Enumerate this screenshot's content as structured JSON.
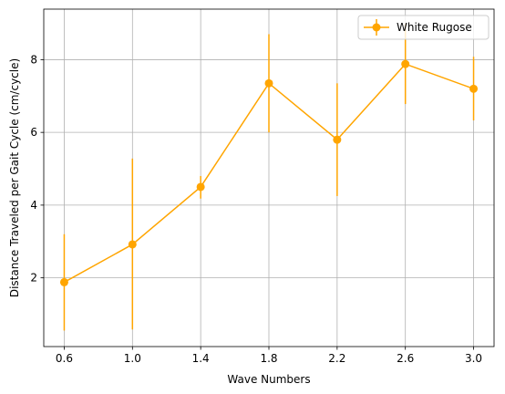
{
  "chart_data": {
    "type": "line",
    "title": "",
    "xlabel": "Wave Numbers",
    "ylabel": "Distance Traveled per Gait Cycle (cm/cycle)",
    "x": [
      0.6,
      1.0,
      1.4,
      1.8,
      2.2,
      2.6,
      3.0
    ],
    "xticks": [
      "0.6",
      "1.0",
      "1.4",
      "1.8",
      "2.2",
      "2.6",
      "3.0"
    ],
    "yticks": [
      "2",
      "4",
      "6",
      "8"
    ],
    "xlim": [
      0.48,
      3.12
    ],
    "ylim": [
      0.11,
      9.39
    ],
    "grid": true,
    "legend_position": "top-right",
    "series": [
      {
        "name": "White Rugose",
        "color": "#ffa500",
        "marker": "circle",
        "values": [
          1.88,
          2.92,
          4.5,
          7.35,
          5.8,
          7.88,
          7.2
        ],
        "error_low": [
          0.55,
          0.58,
          4.18,
          6.0,
          4.25,
          6.78,
          6.33
        ],
        "error_high": [
          3.2,
          5.28,
          4.8,
          8.7,
          7.35,
          8.98,
          8.08
        ]
      }
    ]
  }
}
